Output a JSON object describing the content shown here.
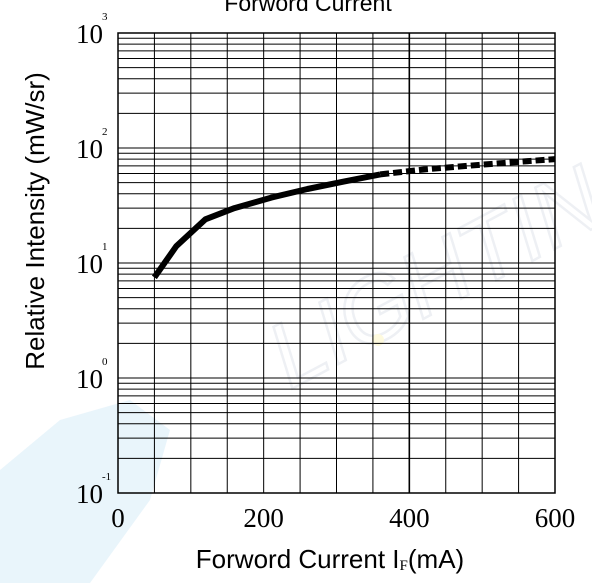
{
  "chart_data": {
    "type": "line",
    "title": "Forword Current",
    "xlabel": "Forword Current I",
    "xlabel_sub": "F",
    "xlabel_unit": "(mA)",
    "ylabel": "Relative Intensity (mW/sr)",
    "xlim": [
      0,
      600
    ],
    "ylim": [
      0.1,
      1000
    ],
    "yscale": "log",
    "grid": true,
    "x_ticks": [
      "0",
      "200",
      "400",
      "600"
    ],
    "y_ticks": [
      {
        "base": "10",
        "exp": "-1"
      },
      {
        "base": "10",
        "exp": "0"
      },
      {
        "base": "10",
        "exp": "1"
      },
      {
        "base": "10",
        "exp": "2"
      },
      {
        "base": "10",
        "exp": "3"
      }
    ],
    "series": [
      {
        "style": "solid",
        "x": [
          50,
          80,
          120,
          160,
          210,
          260,
          310,
          360
        ],
        "y": [
          7.5,
          14,
          24,
          30,
          37,
          44,
          51,
          59
        ]
      },
      {
        "style": "dashed",
        "x": [
          360,
          420,
          480,
          540,
          600
        ],
        "y": [
          59,
          65,
          70,
          75,
          80
        ]
      }
    ],
    "watermark": "LIGHTING",
    "line_color": "#000000"
  }
}
